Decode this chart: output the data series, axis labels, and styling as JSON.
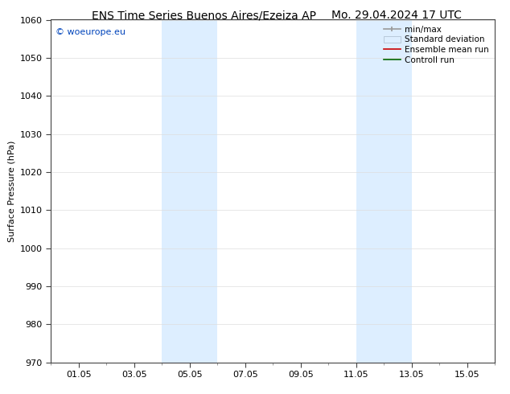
{
  "title_left": "ENS Time Series Buenos Aires/Ezeiza AP",
  "title_right": "Mo. 29.04.2024 17 UTC",
  "ylabel": "Surface Pressure (hPa)",
  "ylim": [
    970,
    1060
  ],
  "yticks": [
    970,
    980,
    990,
    1000,
    1010,
    1020,
    1030,
    1040,
    1050,
    1060
  ],
  "xtick_labels": [
    "01.05",
    "03.05",
    "05.05",
    "07.05",
    "09.05",
    "11.05",
    "13.05",
    "15.05"
  ],
  "xtick_positions": [
    1,
    3,
    5,
    7,
    9,
    11,
    13,
    15
  ],
  "xlim": [
    0,
    16
  ],
  "watermark": "© woeurope.eu",
  "watermark_color": "#0044bb",
  "background_color": "#ffffff",
  "plot_bg_color": "#ffffff",
  "shaded_bands": [
    {
      "xstart": 4.0,
      "xend": 5.0,
      "color": "#ddeeff"
    },
    {
      "xstart": 5.0,
      "xend": 6.0,
      "color": "#ddeeff"
    },
    {
      "xstart": 11.0,
      "xend": 12.0,
      "color": "#ddeeff"
    },
    {
      "xstart": 12.0,
      "xend": 13.0,
      "color": "#ddeeff"
    }
  ],
  "title_fontsize": 10,
  "tick_fontsize": 8,
  "label_fontsize": 8,
  "legend_fontsize": 7.5
}
